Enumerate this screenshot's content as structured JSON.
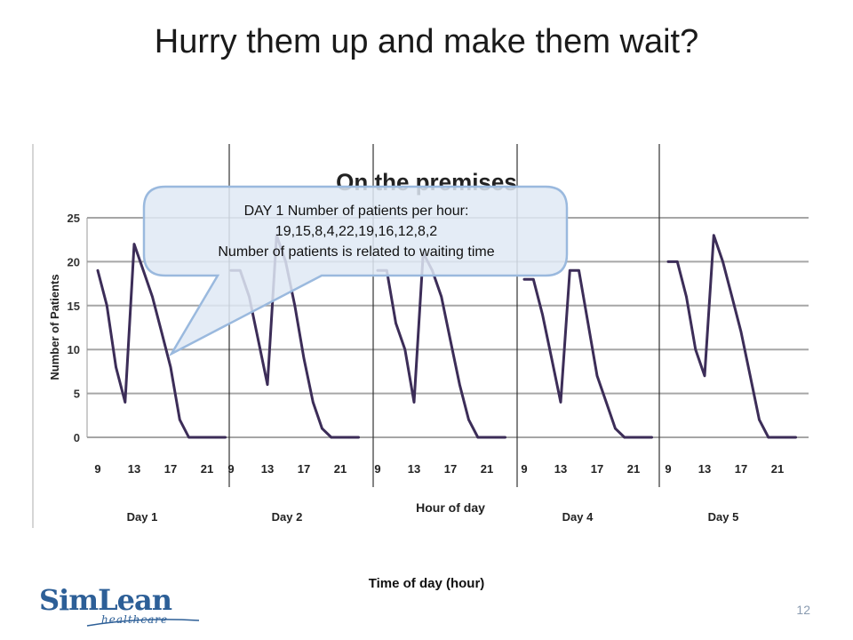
{
  "slide": {
    "title": "Hurry them up and make them wait?",
    "x_caption": "Time of day (hour)",
    "page_number": "12",
    "logo": {
      "main": "SimLean",
      "sub": "healthcare"
    }
  },
  "callout": {
    "lines": [
      "DAY 1 Number of patients per hour:",
      "19,15,8,4,22,19,16,12,8,2",
      "Number of patients is related to waiting time"
    ]
  },
  "colors": {
    "line": "#3c2d58",
    "grid": "#a6a6a6",
    "callout_fill": "#dfe9f5",
    "callout_border": "#9ab9de",
    "logo": "#2d5f97"
  },
  "chart_data": {
    "type": "line",
    "title": "On the premises",
    "xlabel": "Hour of day",
    "ylabel": "Number of Patients",
    "ylim": [
      0,
      25
    ],
    "yticks": [
      0,
      5,
      10,
      15,
      20,
      25
    ],
    "grid": true,
    "days": [
      {
        "label": "Day 1",
        "tick_labels": [
          "9",
          "13",
          "17",
          "21"
        ],
        "values": [
          19,
          15,
          8,
          4,
          22,
          19,
          16,
          12,
          8,
          2,
          0,
          0,
          0,
          0,
          0
        ]
      },
      {
        "label": "Day 2",
        "tick_labels": [
          "9",
          "13",
          "17",
          "21"
        ],
        "values": [
          19,
          19,
          16,
          11,
          6,
          23,
          20,
          15,
          9,
          4,
          1,
          0,
          0,
          0,
          0
        ]
      },
      {
        "label": "",
        "tick_labels": [
          "9",
          "13",
          "17",
          "21"
        ],
        "values": [
          19,
          19,
          13,
          10,
          4,
          21,
          19,
          16,
          11,
          6,
          2,
          0,
          0,
          0,
          0
        ]
      },
      {
        "label": "Day 4",
        "tick_labels": [
          "9",
          "13",
          "17",
          "21"
        ],
        "values": [
          18,
          18,
          14,
          9,
          4,
          19,
          19,
          13,
          7,
          4,
          1,
          0,
          0,
          0,
          0
        ]
      },
      {
        "label": "Day 5",
        "tick_labels": [
          "9",
          "13",
          "17",
          "21"
        ],
        "values": [
          20,
          20,
          16,
          10,
          7,
          23,
          20,
          16,
          12,
          7,
          2,
          0,
          0,
          0,
          0
        ]
      }
    ]
  }
}
